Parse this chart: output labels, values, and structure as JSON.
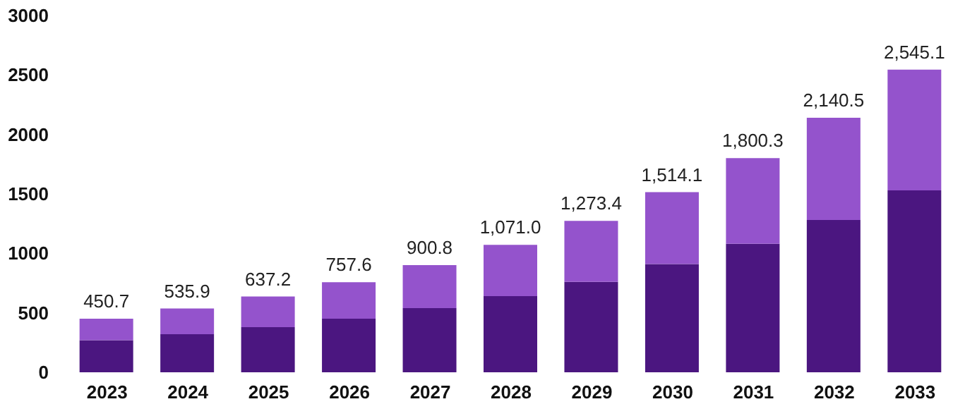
{
  "chart_data": {
    "type": "bar",
    "stacked": true,
    "categories": [
      "2023",
      "2024",
      "2025",
      "2026",
      "2027",
      "2028",
      "2029",
      "2030",
      "2031",
      "2032",
      "2033"
    ],
    "series": [
      {
        "color": "#4b1680",
        "values": [
          270,
          320,
          380,
          450,
          540,
          640,
          760,
          910,
          1080,
          1280,
          1530
        ]
      },
      {
        "color": "#9453cc",
        "values": [
          180.7,
          215.9,
          257.2,
          307.6,
          360.8,
          431.0,
          513.4,
          604.1,
          720.3,
          860.5,
          1015.1
        ]
      }
    ],
    "totals": [
      "450.7",
      "535.9",
      "637.2",
      "757.6",
      "900.8",
      "1,071.0",
      "1,273.4",
      "1,514.1",
      "1,800.3",
      "2,140.5",
      "2,545.1"
    ],
    "ylim": [
      0,
      3000
    ],
    "yticks": [
      0,
      500,
      1000,
      1500,
      2000,
      2500,
      3000
    ],
    "grid": false
  }
}
